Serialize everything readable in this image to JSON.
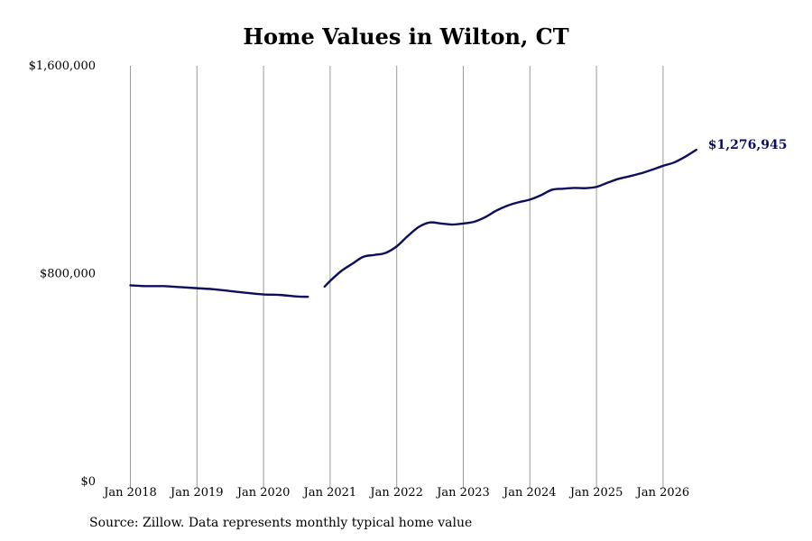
{
  "chart_data": {
    "type": "line",
    "title": "Home Values in Wilton, CT",
    "source_note": "Source: Zillow. Data represents monthly typical home value",
    "xlabel": "",
    "ylabel": "",
    "ylim": [
      0,
      1600000
    ],
    "y_ticks": [
      0,
      800000,
      1600000
    ],
    "y_tick_labels": [
      "$0",
      "$800,000",
      "$1,600,000"
    ],
    "x_ticks": [
      "2018-01",
      "2019-01",
      "2020-01",
      "2021-01",
      "2022-01",
      "2023-01",
      "2024-01",
      "2025-01",
      "2026-01"
    ],
    "x_tick_labels": [
      "Jan 2018",
      "Jan 2019",
      "Jan 2020",
      "Jan 2021",
      "Jan 2022",
      "Jan 2023",
      "Jan 2024",
      "Jan 2025",
      "Jan 2026"
    ],
    "grid": "vertical",
    "line_color": "#0d0d5e",
    "end_label": "$1,276,945",
    "series": [
      {
        "segments": [
          [
            [
              "2018-01",
              755000
            ],
            [
              "2018-04",
              752000
            ],
            [
              "2018-07",
              752000
            ],
            [
              "2018-10",
              748000
            ],
            [
              "2019-01",
              744000
            ],
            [
              "2019-04",
              740000
            ],
            [
              "2019-07",
              733000
            ],
            [
              "2019-10",
              726000
            ],
            [
              "2020-01",
              720000
            ],
            [
              "2020-04",
              718000
            ],
            [
              "2020-07",
              712000
            ],
            [
              "2020-09",
              711000
            ]
          ],
          [
            [
              "2020-12",
              750000
            ],
            [
              "2021-01",
              772000
            ],
            [
              "2021-03",
              810000
            ],
            [
              "2021-05",
              838000
            ],
            [
              "2021-07",
              865000
            ],
            [
              "2021-09",
              872000
            ],
            [
              "2021-11",
              880000
            ],
            [
              "2022-01",
              905000
            ],
            [
              "2022-03",
              945000
            ],
            [
              "2022-05",
              980000
            ],
            [
              "2022-07",
              997000
            ],
            [
              "2022-09",
              993000
            ],
            [
              "2022-11",
              989000
            ],
            [
              "2023-01",
              993000
            ],
            [
              "2023-03",
              1000000
            ],
            [
              "2023-05",
              1018000
            ],
            [
              "2023-07",
              1043000
            ],
            [
              "2023-09",
              1062000
            ],
            [
              "2023-11",
              1075000
            ],
            [
              "2024-01",
              1085000
            ],
            [
              "2024-03",
              1102000
            ],
            [
              "2024-05",
              1123000
            ],
            [
              "2024-07",
              1127000
            ],
            [
              "2024-09",
              1130000
            ],
            [
              "2024-11",
              1129000
            ],
            [
              "2025-01",
              1134000
            ],
            [
              "2025-03",
              1150000
            ],
            [
              "2025-05",
              1165000
            ],
            [
              "2025-07",
              1175000
            ],
            [
              "2025-09",
              1186000
            ],
            [
              "2025-11",
              1200000
            ],
            [
              "2026-01",
              1215000
            ],
            [
              "2026-03",
              1228000
            ],
            [
              "2026-05",
              1250000
            ],
            [
              "2026-07",
              1276945
            ]
          ]
        ]
      }
    ]
  }
}
